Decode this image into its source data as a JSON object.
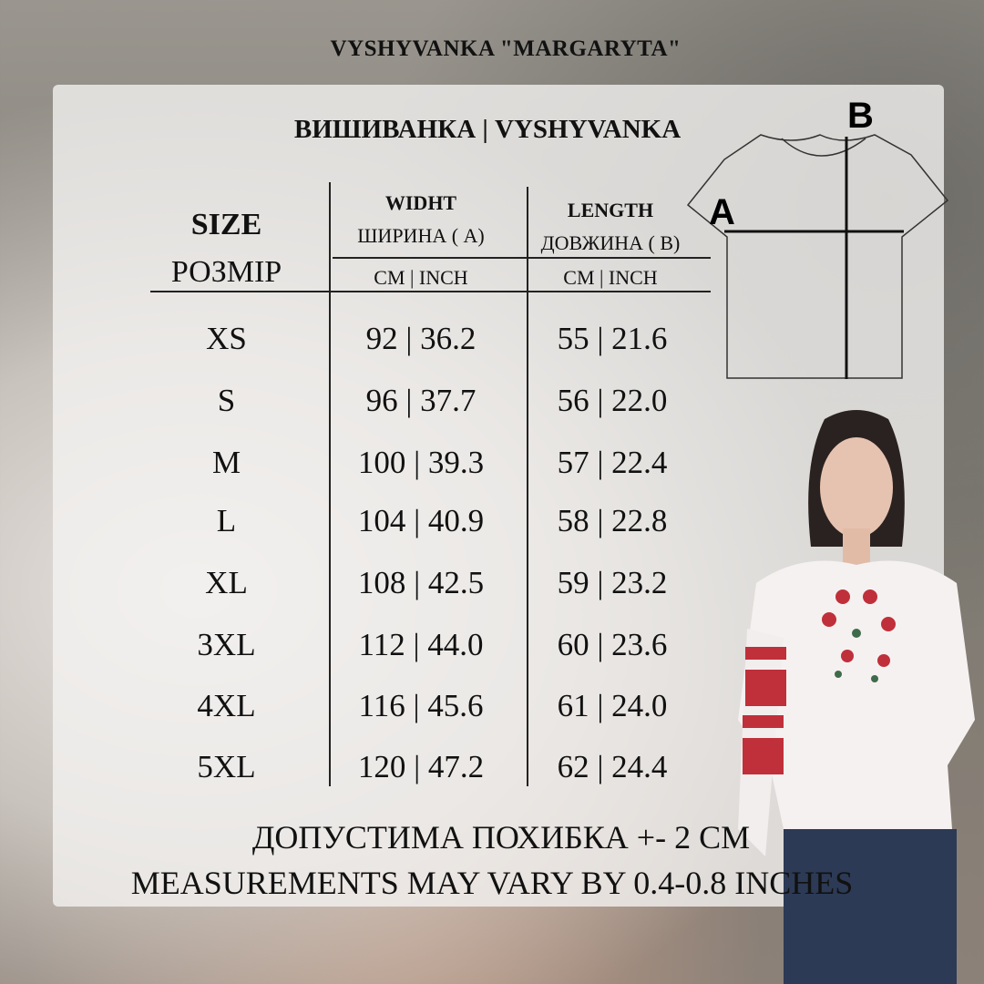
{
  "title": "VYSHYVANKA \"MARGARYTA\"",
  "heading": "ВИШИВАНКА | VYSHYVANKA",
  "table": {
    "size_header_en": "SIZE",
    "size_header_ua": "РОЗМІР",
    "width_header_en": "WIDHT",
    "width_header_ua": "ШИРИНА ( А)",
    "length_header_en": "LENGTH",
    "length_header_ua": "ДОВЖИНА ( В)",
    "units": "CM | INCH",
    "rows": [
      {
        "size": "XS",
        "width": "92 | 36.2",
        "length": "55 | 21.6"
      },
      {
        "size": "S",
        "width": "96 | 37.7",
        "length": "56 | 22.0"
      },
      {
        "size": "M",
        "width": "100 | 39.3",
        "length": "57 | 22.4"
      },
      {
        "size": "L",
        "width": "104 | 40.9",
        "length": "58 | 22.8"
      },
      {
        "size": "XL",
        "width": "108 | 42.5",
        "length": "59 | 23.2"
      },
      {
        "size": "3XL",
        "width": "112 | 44.0",
        "length": "60 | 23.6"
      },
      {
        "size": "4XL",
        "width": "116 | 45.6",
        "length": "61 | 24.0"
      },
      {
        "size": "5XL",
        "width": "120 | 47.2",
        "length": "62 | 24.4"
      }
    ]
  },
  "diagram": {
    "label_a": "A",
    "label_b": "B"
  },
  "footer": {
    "line1": "ДОПУСТИМА ПОХИБКА +- 2 СМ",
    "line2": "MEASUREMENTS MAY VARY BY 0.4-0.8 INCHES"
  },
  "colors": {
    "embroidery": "#c0303a",
    "leaf": "#3e6b4a"
  }
}
